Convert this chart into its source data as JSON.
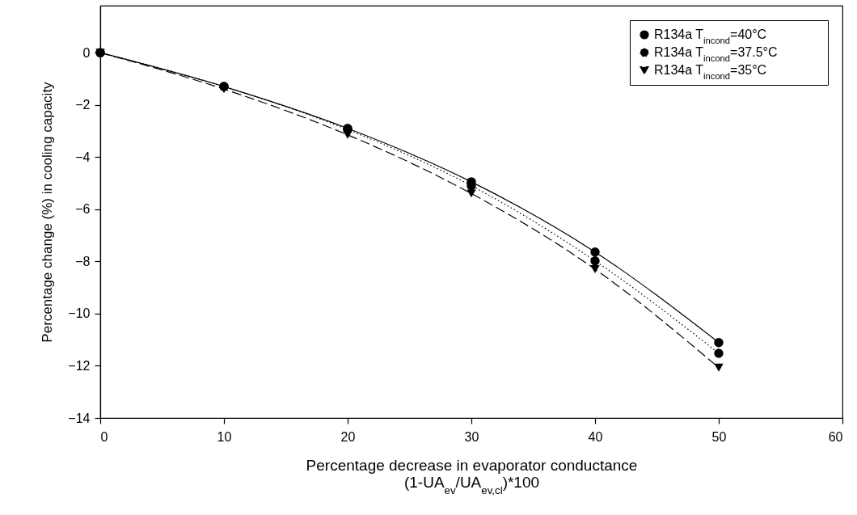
{
  "chart_data": {
    "type": "line",
    "xlabel": "Percentage decrease in evaporator conductance\n(1-UA$_{ev}$/UA$_{ev,cl}$)*100",
    "ylabel": "Percentage change (%) in cooling capacity",
    "x": [
      0,
      10,
      20,
      30,
      40,
      50
    ],
    "series": [
      {
        "name": "R134a T$_{incond}$=40°C",
        "color": "#000000",
        "marker": "circle",
        "line_style": "solid",
        "values": [
          0,
          -1.3,
          -2.9,
          -4.95,
          -7.64,
          -11.11
        ]
      },
      {
        "name": "R134a T$_{incond}$=37.5°C",
        "color": "#000000",
        "marker": "circle",
        "line_style": "dotted",
        "values": [
          0,
          -1.3,
          -2.95,
          -5.1,
          -7.98,
          -11.52
        ]
      },
      {
        "name": "R134a T$_{incond}$=35°C",
        "color": "#000000",
        "marker": "triangle",
        "line_style": "dashed",
        "values": [
          0,
          -1.4,
          -3.15,
          -5.4,
          -8.3,
          -12.07
        ]
      }
    ],
    "xlim": [
      0,
      60
    ],
    "xticks": [
      0,
      10,
      20,
      30,
      40,
      50,
      60
    ],
    "ylim": [
      -14,
      1.8
    ],
    "yticks": [
      -14,
      -12,
      -10,
      -8,
      -6,
      -4,
      -2,
      0
    ],
    "grid": false,
    "legend": "top right"
  }
}
